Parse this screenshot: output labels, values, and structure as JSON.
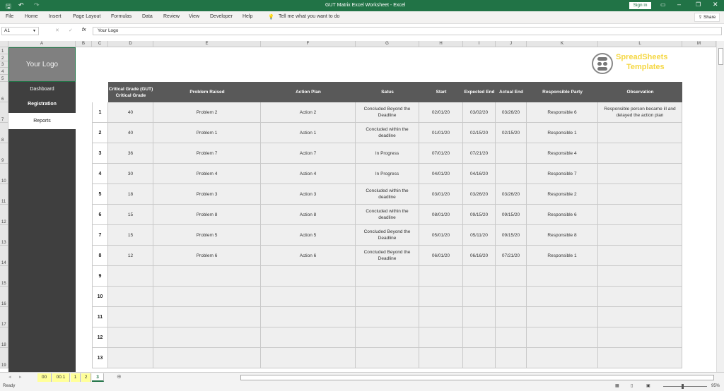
{
  "window": {
    "title": "GUT Matrix Excel Worksheet  -  Excel",
    "sign_in": "Sign in",
    "share": "Share"
  },
  "ribbon": {
    "tabs": [
      "File",
      "Home",
      "Insert",
      "Page Layout",
      "Formulas",
      "Data",
      "Review",
      "View",
      "Developer",
      "Help"
    ],
    "tell_me": "Tell me what you want to do"
  },
  "formula_bar": {
    "name_box": "A1",
    "formula": "Your Logo"
  },
  "columns": [
    "A",
    "B",
    "C",
    "D",
    "E",
    "F",
    "G",
    "H",
    "I",
    "J",
    "K",
    "L",
    "M"
  ],
  "logo": {
    "placeholder": "Your Logo",
    "brand_line1": "SpreadSheets",
    "brand_line2": "Templates",
    "brand_color": "#f5d742"
  },
  "nav": {
    "dashboard": "Dashboard",
    "registration": "Registration",
    "reports": "Reports"
  },
  "table": {
    "headers": [
      "Critical Grade (GUT)\nCritical Grade",
      "Problem Raised",
      "Action Plan",
      "Satus",
      "Start",
      "Expected End",
      "Actual End",
      "Responsible Party",
      "Observation"
    ],
    "rows": [
      [
        "1",
        "40",
        "Problem 2",
        "Action 2",
        "Concluded Beyond the Deadline",
        "02/01/20",
        "03/02/20",
        "03/26/20",
        "Responsible 6",
        "Responsible person became ill and delayed the action plan"
      ],
      [
        "2",
        "40",
        "Problem 1",
        "Action 1",
        "Concluded within the deadline",
        "01/01/20",
        "02/15/20",
        "02/15/20",
        "Responsible 1",
        ""
      ],
      [
        "3",
        "36",
        "Problem 7",
        "Action 7",
        "In Progress",
        "07/01/20",
        "07/21/20",
        "",
        "Responsible 4",
        ""
      ],
      [
        "4",
        "30",
        "Problem 4",
        "Action 4",
        "In Progress",
        "04/01/20",
        "04/16/20",
        "",
        "Responsible 7",
        ""
      ],
      [
        "5",
        "18",
        "Problem 3",
        "Action 3",
        "Concluded within the deadline",
        "03/01/20",
        "03/26/20",
        "03/26/20",
        "Responsible 2",
        ""
      ],
      [
        "6",
        "15",
        "Problem 8",
        "Action 8",
        "Concluded within the deadline",
        "08/01/20",
        "09/15/20",
        "09/15/20",
        "Responsible 6",
        ""
      ],
      [
        "7",
        "15",
        "Problem 5",
        "Action 5",
        "Concluded Beyond the Deadline",
        "05/01/20",
        "05/11/20",
        "09/15/20",
        "Responsible 8",
        ""
      ],
      [
        "8",
        "12",
        "Problem 6",
        "Action 6",
        "Concluded Beyond the Deadline",
        "06/01/20",
        "06/16/20",
        "07/21/20",
        "Responsible 1",
        ""
      ],
      [
        "9",
        "",
        "",
        "",
        "",
        "",
        "",
        "",
        "",
        ""
      ],
      [
        "10",
        "",
        "",
        "",
        "",
        "",
        "",
        "",
        "",
        ""
      ],
      [
        "11",
        "",
        "",
        "",
        "",
        "",
        "",
        "",
        "",
        ""
      ],
      [
        "12",
        "",
        "",
        "",
        "",
        "",
        "",
        "",
        "",
        ""
      ],
      [
        "13",
        "",
        "",
        "",
        "",
        "",
        "",
        "",
        "",
        ""
      ]
    ]
  },
  "row_numbers": [
    "1",
    "2",
    "3",
    "4",
    "5",
    "6",
    "7",
    "8",
    "9",
    "10",
    "11",
    "12",
    "13",
    "14",
    "15",
    "16",
    "17",
    "18",
    "19"
  ],
  "sheet_tabs": [
    "00",
    "00.1",
    "1",
    "2",
    "3"
  ],
  "active_sheet": "3",
  "status": {
    "ready": "Ready",
    "zoom": "95%"
  }
}
